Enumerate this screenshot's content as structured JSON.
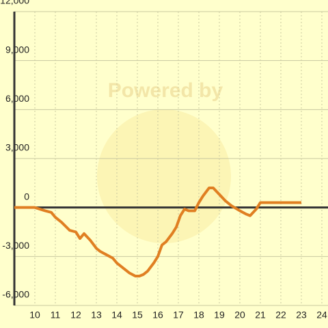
{
  "chart_data": {
    "type": "line",
    "watermark": "Powered by",
    "x": [
      9,
      10,
      10.5,
      10.8,
      11,
      11.3,
      11.7,
      12,
      12.2,
      12.4,
      12.7,
      13,
      13.2,
      13.5,
      13.8,
      14,
      14.3,
      14.6,
      14.9,
      15.1,
      15.3,
      15.5,
      15.8,
      16,
      16.2,
      16.4,
      16.7,
      16.9,
      17.1,
      17.3,
      17.5,
      17.8,
      18,
      18.2,
      18.5,
      18.7,
      19,
      19.3,
      19.6,
      20,
      20.3,
      20.5,
      20.8,
      21,
      23
    ],
    "series": [
      {
        "color": "#e07f22",
        "values": [
          0,
          0,
          -200,
          -300,
          -600,
          -900,
          -1400,
          -1500,
          -1900,
          -1600,
          -2000,
          -2500,
          -2700,
          -2900,
          -3100,
          -3400,
          -3700,
          -4000,
          -4200,
          -4200,
          -4100,
          -3900,
          -3400,
          -3000,
          -2300,
          -2100,
          -1600,
          -1200,
          -500,
          -100,
          -200,
          -200,
          300,
          700,
          1200,
          1200,
          800,
          400,
          100,
          -200,
          -400,
          -500,
          -100,
          300,
          300
        ]
      }
    ],
    "xlim": [
      9,
      24.3
    ],
    "xticks": [
      10,
      11,
      12,
      13,
      14,
      15,
      16,
      17,
      18,
      19,
      20,
      21,
      22,
      23,
      24
    ],
    "ylim": [
      -6000,
      12000
    ],
    "yticks": [
      {
        "value": -6000,
        "label": "-6,000"
      },
      {
        "value": -3000,
        "label": "-3,000"
      },
      0,
      {
        "value": 3000,
        "label": "3,000"
      },
      {
        "value": 6000,
        "label": "6,000"
      },
      {
        "value": 9000,
        "label": "9,000"
      },
      {
        "value": 12000,
        "label": "12,000"
      }
    ],
    "grid": true
  }
}
